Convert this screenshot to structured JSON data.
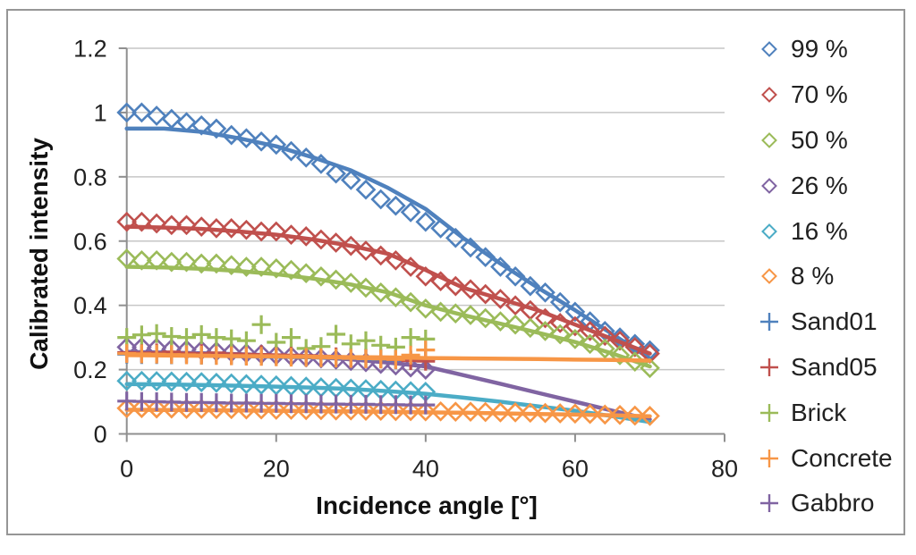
{
  "chart_data": {
    "type": "scatter",
    "xlabel": "Incidence angle [°]",
    "ylabel": "Calibrated intensity",
    "xlim": [
      0,
      80
    ],
    "ylim": [
      0,
      1.2
    ],
    "xticks": [
      0,
      20,
      40,
      60,
      80
    ],
    "yticks": [
      0,
      0.2,
      0.4,
      0.6,
      0.8,
      1,
      1.2
    ],
    "xtick_labels": [
      "0",
      "20",
      "40",
      "60",
      "80"
    ],
    "ytick_labels": [
      "0",
      "0.2",
      "0.4",
      "0.6",
      "0.8",
      "1",
      "1.2"
    ],
    "grid": true,
    "legend_position": "right",
    "colors": {
      "gridline": "#C6C6C6",
      "axis": "#8F8F8F",
      "frame_border": "#969696",
      "text": "#212121",
      "background": "#FFFFFF"
    },
    "series": [
      {
        "name": "99 %",
        "color": "#4F81BD",
        "marker": "diamond",
        "markers": {
          "x_start": 0,
          "x_step": 2,
          "values": [
            1.0,
            1.0,
            0.99,
            0.98,
            0.97,
            0.96,
            0.95,
            0.93,
            0.92,
            0.91,
            0.9,
            0.88,
            0.86,
            0.84,
            0.81,
            0.79,
            0.76,
            0.73,
            0.71,
            0.69,
            0.66,
            0.64,
            0.61,
            0.58,
            0.55,
            0.52,
            0.49,
            0.46,
            0.44,
            0.41,
            0.38,
            0.35,
            0.32,
            0.3,
            0.28,
            0.26
          ]
        },
        "fit_line": {
          "x_start": 0,
          "x_step": 5,
          "values": [
            0.95,
            0.95,
            0.94,
            0.92,
            0.895,
            0.86,
            0.82,
            0.765,
            0.7,
            0.61,
            0.53,
            0.455,
            0.385,
            0.31,
            0.235
          ]
        }
      },
      {
        "name": "70 %",
        "color": "#C0504D",
        "marker": "diamond",
        "markers": {
          "x_start": 0,
          "x_step": 2,
          "values": [
            0.66,
            0.66,
            0.655,
            0.65,
            0.65,
            0.645,
            0.64,
            0.64,
            0.635,
            0.63,
            0.63,
            0.62,
            0.615,
            0.605,
            0.595,
            0.585,
            0.57,
            0.555,
            0.54,
            0.52,
            0.49,
            0.475,
            0.46,
            0.45,
            0.435,
            0.42,
            0.4,
            0.385,
            0.36,
            0.345,
            0.335,
            0.32,
            0.305,
            0.29,
            0.27,
            0.25
          ]
        },
        "fit_line": {
          "x_start": 0,
          "x_step": 5,
          "values": [
            0.645,
            0.642,
            0.638,
            0.63,
            0.62,
            0.605,
            0.585,
            0.56,
            0.51,
            0.455,
            0.42,
            0.385,
            0.34,
            0.295,
            0.25
          ]
        }
      },
      {
        "name": "50 %",
        "color": "#9BBB59",
        "marker": "diamond",
        "markers": {
          "x_start": 0,
          "x_step": 2,
          "values": [
            0.545,
            0.54,
            0.54,
            0.535,
            0.535,
            0.53,
            0.53,
            0.525,
            0.52,
            0.52,
            0.515,
            0.51,
            0.5,
            0.49,
            0.48,
            0.47,
            0.455,
            0.44,
            0.425,
            0.41,
            0.39,
            0.38,
            0.375,
            0.37,
            0.36,
            0.35,
            0.34,
            0.33,
            0.32,
            0.31,
            0.295,
            0.28,
            0.265,
            0.245,
            0.225,
            0.205
          ]
        },
        "fit_line": {
          "x_start": 0,
          "x_step": 5,
          "values": [
            0.52,
            0.518,
            0.514,
            0.507,
            0.497,
            0.483,
            0.465,
            0.44,
            0.4,
            0.37,
            0.343,
            0.315,
            0.286,
            0.25,
            0.21
          ]
        }
      },
      {
        "name": "26 %",
        "color": "#8064A2",
        "marker": "diamond",
        "markers": {
          "x_start": 0,
          "x_step": 2,
          "values": [
            0.27,
            0.27,
            0.268,
            0.265,
            0.262,
            0.26,
            0.257,
            0.254,
            0.251,
            0.248,
            0.245,
            0.242,
            0.238,
            0.235,
            0.231,
            0.227,
            0.223,
            0.218,
            0.213,
            0.207,
            0.2
          ]
        },
        "fit_line": {
          "x_start": 0,
          "x_step": 5,
          "values": [
            0.255,
            0.253,
            0.251,
            0.248,
            0.244,
            0.239,
            0.232,
            0.222,
            0.21,
            0.183,
            0.156,
            0.128,
            0.1,
            0.072,
            0.045
          ]
        }
      },
      {
        "name": "16 %",
        "color": "#4BACC6",
        "marker": "diamond",
        "markers": {
          "x_start": 0,
          "x_step": 2,
          "values": [
            0.165,
            0.165,
            0.164,
            0.163,
            0.162,
            0.161,
            0.159,
            0.157,
            0.155,
            0.153,
            0.151,
            0.149,
            0.147,
            0.145,
            0.143,
            0.141,
            0.139,
            0.137,
            0.135,
            0.133,
            0.131
          ]
        },
        "fit_line": {
          "x_start": 0,
          "x_step": 5,
          "values": [
            0.155,
            0.154,
            0.152,
            0.15,
            0.147,
            0.144,
            0.14,
            0.133,
            0.125,
            0.113,
            0.1,
            0.086,
            0.072,
            0.055,
            0.037
          ]
        }
      },
      {
        "name": "8 %",
        "color": "#F79646",
        "marker": "diamond",
        "markers": {
          "x_start": 0,
          "x_step": 2,
          "values": [
            0.08,
            0.08,
            0.079,
            0.079,
            0.078,
            0.078,
            0.077,
            0.077,
            0.076,
            0.076,
            0.075,
            0.075,
            0.074,
            0.074,
            0.073,
            0.073,
            0.072,
            0.072,
            0.071,
            0.071,
            0.07,
            0.07,
            0.069,
            0.069,
            0.068,
            0.067,
            0.067,
            0.066,
            0.065,
            0.064,
            0.063,
            0.062,
            0.06,
            0.059,
            0.057,
            0.056
          ]
        },
        "fit_line": {
          "x_start": 0,
          "x_step": 5,
          "values": [
            0.075,
            0.0745,
            0.074,
            0.073,
            0.072,
            0.071,
            0.07,
            0.069,
            0.067,
            0.066,
            0.064,
            0.062,
            0.06,
            0.058,
            0.055
          ]
        }
      },
      {
        "name": "Sand01",
        "color": "#4F81BD",
        "marker": "plus",
        "markers": {
          "x_start": 0,
          "x_step": 2,
          "values": [
            0.248,
            0.247,
            0.247,
            0.246,
            0.246,
            0.245,
            0.245,
            0.244,
            0.243,
            0.242,
            0.241,
            0.24,
            0.239,
            0.238,
            0.237,
            0.236,
            0.235,
            0.234,
            0.233,
            0.232,
            0.231
          ]
        },
        "fit_line": {
          "x_start": 0,
          "x_step": 5,
          "values": [
            0.246,
            0.245,
            0.244,
            0.242,
            0.24,
            0.238,
            0.236,
            0.232,
            0.229
          ]
        }
      },
      {
        "name": "Sand05",
        "color": "#C0504D",
        "marker": "plus",
        "markers": {
          "x_start": 0,
          "x_step": 2,
          "values": [
            0.253,
            0.252,
            0.252,
            0.255,
            0.251,
            0.25,
            0.252,
            0.249,
            0.248,
            0.247,
            0.246,
            0.245,
            0.244,
            0.242,
            0.24,
            0.238,
            0.236,
            0.234,
            0.231,
            0.228,
            0.226
          ]
        },
        "fit_line": {
          "x_start": 0,
          "x_step": 5,
          "values": [
            0.25,
            0.249,
            0.248,
            0.246,
            0.244,
            0.241,
            0.238,
            0.234,
            0.23
          ]
        }
      },
      {
        "name": "Brick",
        "color": "#9BBB59",
        "marker": "plus",
        "markers": {
          "x_start": 0,
          "x_step": 2,
          "values": [
            0.3,
            0.308,
            0.312,
            0.303,
            0.3,
            0.309,
            0.3,
            0.296,
            0.29,
            0.34,
            0.285,
            0.3,
            0.266,
            0.272,
            0.31,
            0.28,
            0.29,
            0.276,
            0.27,
            0.3,
            0.295
          ]
        }
      },
      {
        "name": "Concrete",
        "color": "#F79646",
        "marker": "plus",
        "markers": {
          "x_start": 0,
          "x_step": 2,
          "values": [
            0.25,
            0.249,
            0.248,
            0.247,
            0.246,
            0.245,
            0.244,
            0.243,
            0.242,
            0.241,
            0.24,
            0.239,
            0.238,
            0.237,
            0.236,
            0.235,
            0.234,
            0.233,
            0.232,
            0.245,
            0.261
          ]
        },
        "fit_line": {
          "x_start": 0,
          "x_step": 5,
          "values": [
            0.245,
            0.244,
            0.243,
            0.242,
            0.241,
            0.24,
            0.239,
            0.238,
            0.236,
            0.235,
            0.234,
            0.233,
            0.231,
            0.23,
            0.228
          ]
        }
      },
      {
        "name": "Gabbro",
        "color": "#8064A2",
        "marker": "plus",
        "markers": {
          "x_start": 0,
          "x_step": 2,
          "values": [
            0.102,
            0.101,
            0.1,
            0.099,
            0.098,
            0.098,
            0.097,
            0.096,
            0.096,
            0.095,
            0.095,
            0.094,
            0.094,
            0.093,
            0.093,
            0.092,
            0.092,
            0.091,
            0.091,
            0.09,
            0.09
          ]
        }
      }
    ]
  }
}
